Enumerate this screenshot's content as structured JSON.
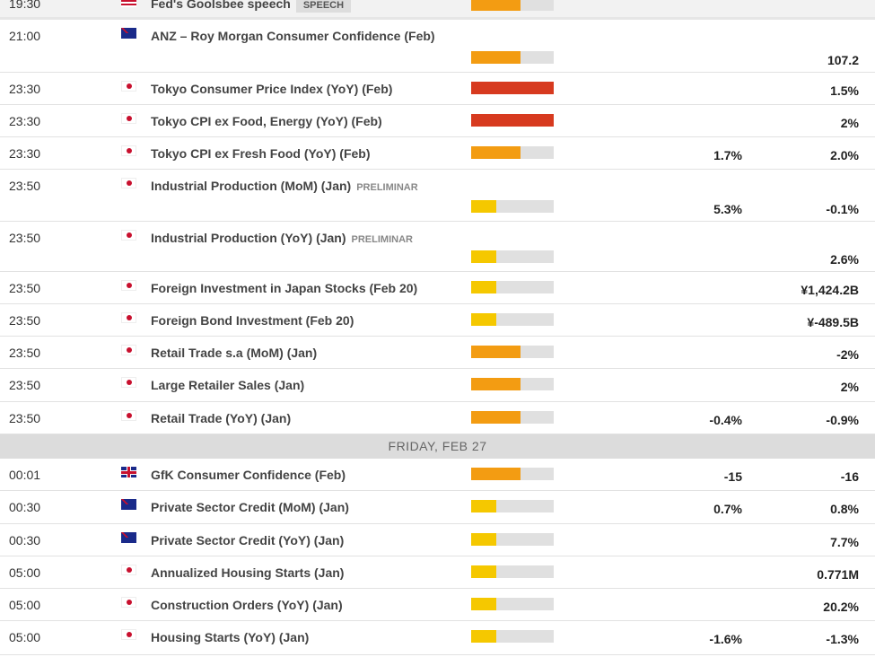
{
  "colors": {
    "low": "#f5c800",
    "medium": "#f39c12",
    "high": "#d73a1f",
    "track": "#e0e0e0"
  },
  "top_row": {
    "time": "19:30",
    "flag": "us-flag",
    "name": "Fed's Goolsbee speech",
    "tag": "SPEECH",
    "impact": "medium"
  },
  "date_header": "FRIDAY, FEB 27",
  "events_thu": [
    {
      "time": "21:00",
      "flag": "au",
      "name": "ANZ – Roy Morgan Consumer Confidence (Feb)",
      "tag": "",
      "impact": "medium",
      "actual": "",
      "previous": "107.2",
      "two_line": true
    },
    {
      "time": "23:30",
      "flag": "jp",
      "name": "Tokyo Consumer Price Index (YoY) (Feb)",
      "tag": "",
      "impact": "high",
      "actual": "",
      "previous": "1.5%"
    },
    {
      "time": "23:30",
      "flag": "jp",
      "name": "Tokyo CPI ex Food, Energy (YoY) (Feb)",
      "tag": "",
      "impact": "high",
      "actual": "",
      "previous": "2%"
    },
    {
      "time": "23:30",
      "flag": "jp",
      "name": "Tokyo CPI ex Fresh Food (YoY) (Feb)",
      "tag": "",
      "impact": "medium",
      "actual": "1.7%",
      "previous": "2.0%"
    },
    {
      "time": "23:50",
      "flag": "jp",
      "name": "Industrial Production (MoM) (Jan)",
      "tag": "PRELIMINAR",
      "impact": "low",
      "actual": "5.3%",
      "previous": "-0.1%",
      "two_line": true
    },
    {
      "time": "23:50",
      "flag": "jp",
      "name": "Industrial Production (YoY) (Jan)",
      "tag": "PRELIMINAR",
      "impact": "low",
      "actual": "",
      "previous": "2.6%",
      "two_line": true
    },
    {
      "time": "23:50",
      "flag": "jp",
      "name": "Foreign Investment in Japan Stocks (Feb 20)",
      "tag": "",
      "impact": "low",
      "actual": "",
      "previous": "¥1,424.2B"
    },
    {
      "time": "23:50",
      "flag": "jp",
      "name": "Foreign Bond Investment (Feb 20)",
      "tag": "",
      "impact": "low",
      "actual": "",
      "previous": "¥-489.5B"
    },
    {
      "time": "23:50",
      "flag": "jp",
      "name": "Retail Trade s.a (MoM) (Jan)",
      "tag": "",
      "impact": "medium",
      "actual": "",
      "previous": "-2%"
    },
    {
      "time": "23:50",
      "flag": "jp",
      "name": "Large Retailer Sales (Jan)",
      "tag": "",
      "impact": "medium",
      "actual": "",
      "previous": "2%"
    },
    {
      "time": "23:50",
      "flag": "jp",
      "name": "Retail Trade (YoY) (Jan)",
      "tag": "",
      "impact": "medium",
      "actual": "-0.4%",
      "previous": "-0.9%"
    }
  ],
  "events_fri": [
    {
      "time": "00:01",
      "flag": "gb",
      "name": "GfK Consumer Confidence (Feb)",
      "tag": "",
      "impact": "medium",
      "actual": "-15",
      "previous": "-16"
    },
    {
      "time": "00:30",
      "flag": "au",
      "name": "Private Sector Credit (MoM) (Jan)",
      "tag": "",
      "impact": "low",
      "actual": "0.7%",
      "previous": "0.8%"
    },
    {
      "time": "00:30",
      "flag": "au",
      "name": "Private Sector Credit (YoY) (Jan)",
      "tag": "",
      "impact": "low",
      "actual": "",
      "previous": "7.7%"
    },
    {
      "time": "05:00",
      "flag": "jp",
      "name": "Annualized Housing Starts (Jan)",
      "tag": "",
      "impact": "low",
      "actual": "",
      "previous": "0.771M"
    },
    {
      "time": "05:00",
      "flag": "jp",
      "name": "Construction Orders (YoY) (Jan)",
      "tag": "",
      "impact": "low",
      "actual": "",
      "previous": "20.2%"
    },
    {
      "time": "05:00",
      "flag": "jp",
      "name": "Housing Starts (YoY) (Jan)",
      "tag": "",
      "impact": "low",
      "actual": "-1.6%",
      "previous": "-1.3%"
    }
  ]
}
